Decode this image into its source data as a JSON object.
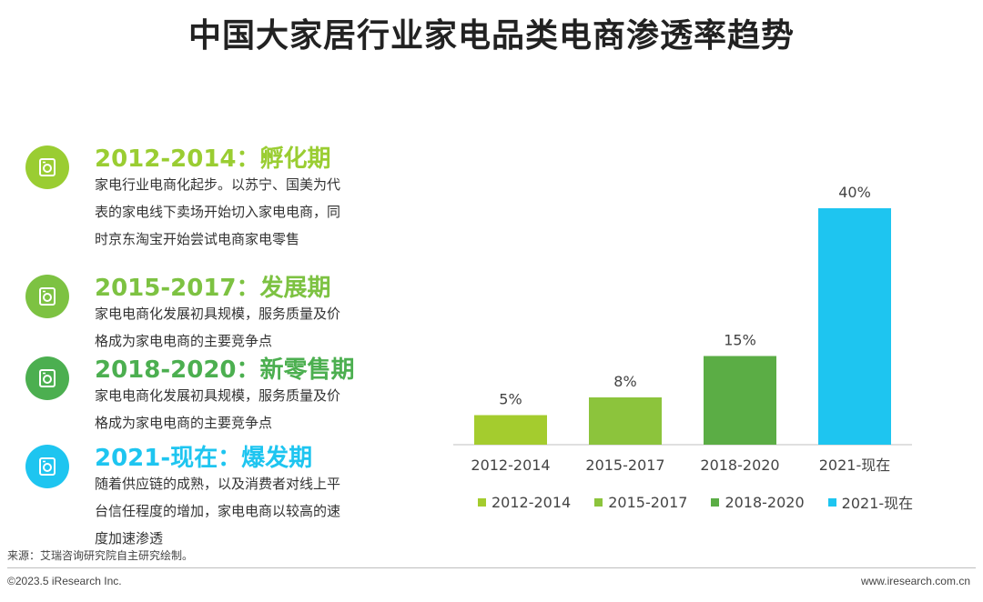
{
  "title": "中国大家居行业家电品类电商渗透率趋势",
  "phases": [
    {
      "heading": "2012-2014：孵化期",
      "color": "#9ACD32",
      "icon": "washing-machine-icon",
      "desc": "家电行业电商化起步。以苏宁、国美为代表的家电线下卖场开始切入家电电商，同时京东淘宝开始尝试电商家电零售"
    },
    {
      "heading": "2015-2017：发展期",
      "color": "#7DC242",
      "icon": "washing-machine-icon",
      "desc": "家电电商化发展初具规模，服务质量及价格成为家电电商的主要竞争点"
    },
    {
      "heading": "2018-2020：新零售期",
      "color": "#4CAF50",
      "icon": "washing-machine-icon",
      "desc": "家电电商化发展初具规模，服务质量及价格成为家电电商的主要竞争点"
    },
    {
      "heading": "2021-现在：爆发期",
      "color": "#1EC5F0",
      "icon": "washing-machine-icon",
      "desc": "随着供应链的成熟，以及消费者对线上平台信任程度的增加，家电电商以较高的速度加速渗透"
    }
  ],
  "chart_data": {
    "type": "bar",
    "categories": [
      "2012-2014",
      "2015-2017",
      "2018-2020",
      "2021-现在"
    ],
    "values": [
      5,
      8,
      15,
      40
    ],
    "value_labels": [
      "5%",
      "8%",
      "15%",
      "40%"
    ],
    "colors": [
      "#A4CC2E",
      "#8CC43C",
      "#5BAD45",
      "#1EC5F0"
    ],
    "ylim": [
      0,
      40
    ],
    "grid": false,
    "legend_position": "bottom"
  },
  "legend": [
    {
      "label": "2012-2014",
      "color": "#A4CC2E"
    },
    {
      "label": "2015-2017",
      "color": "#8CC43C"
    },
    {
      "label": "2018-2020",
      "color": "#5BAD45"
    },
    {
      "label": "2021-现在",
      "color": "#1EC5F0"
    }
  ],
  "source": "来源：艾瑞咨询研究院自主研究绘制。",
  "copyright": "©2023.5 iResearch Inc.",
  "website": "www.iresearch.com.cn"
}
